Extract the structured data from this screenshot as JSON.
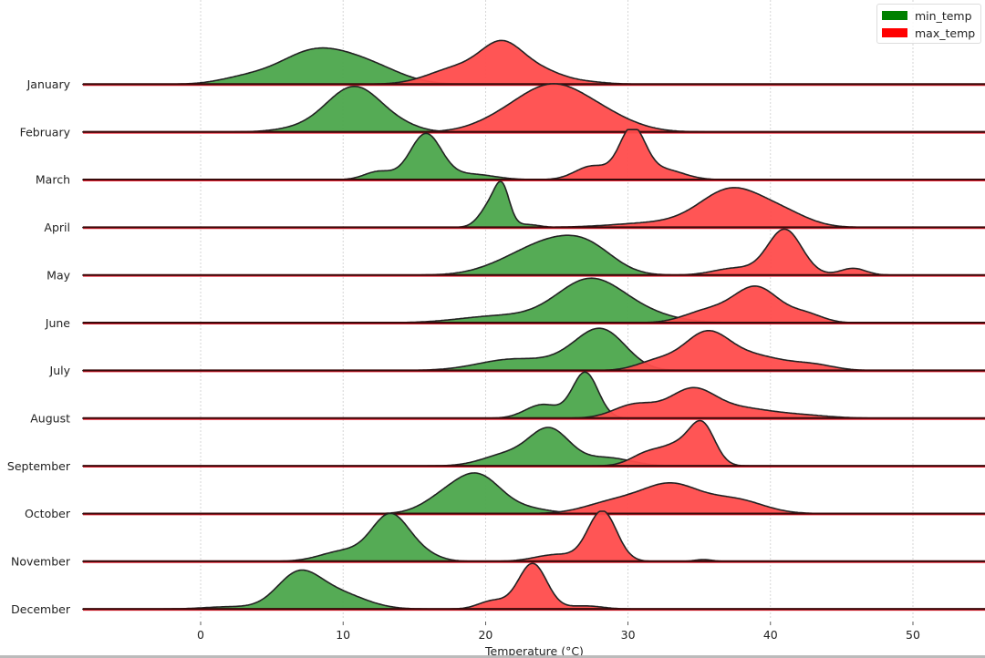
{
  "chart_data": {
    "type": "ridgeline",
    "title": "",
    "xlabel": "Temperature (°C)",
    "ylabel": "",
    "xlim": [
      -8.4,
      55.3
    ],
    "x_ticks": [
      0,
      10,
      20,
      30,
      40,
      50
    ],
    "x_tick_labels": [
      "0",
      "10",
      "20",
      "30",
      "40",
      "50"
    ],
    "grid": "vertical dashed",
    "legend_position": "upper right",
    "legend": [
      {
        "label": "min_temp",
        "color": "#008000"
      },
      {
        "label": "max_temp",
        "color": "#ff0000"
      }
    ],
    "categories": [
      "January",
      "February",
      "March",
      "April",
      "May",
      "June",
      "July",
      "August",
      "September",
      "October",
      "November",
      "December"
    ],
    "series": [
      {
        "name": "min_temp",
        "color": "#008000",
        "fill": "#4ca64c",
        "peaks": [
          8,
          11,
          15.7,
          21,
          25.5,
          27.5,
          28,
          27,
          24.5,
          19.5,
          13.3,
          7.2
        ],
        "rows": [
          [
            [
              3,
              1.8,
              0.12
            ],
            [
              8,
              2.5,
              0.72
            ],
            [
              12,
              2.2,
              0.32
            ]
          ],
          [
            [
              6.5,
              1.6,
              0.05
            ],
            [
              10.8,
              2.0,
              1.0
            ],
            [
              14.5,
              1.2,
              0.05
            ]
          ],
          [
            [
              12.5,
              1.0,
              0.18
            ],
            [
              15.8,
              1.1,
              1.0
            ],
            [
              19,
              1.6,
              0.12
            ]
          ],
          [
            [
              20.5,
              0.8,
              0.55
            ],
            [
              21.2,
              0.5,
              0.6
            ],
            [
              23,
              0.8,
              0.06
            ]
          ],
          [
            [
              22,
              2.2,
              0.25
            ],
            [
              25,
              2.2,
              0.6
            ],
            [
              27.5,
              1.8,
              0.4
            ]
          ],
          [
            [
              21,
              2.8,
              0.15
            ],
            [
              27.2,
              2.3,
              0.88
            ],
            [
              30.5,
              2.5,
              0.2
            ]
          ],
          [
            [
              22,
              2.5,
              0.25
            ],
            [
              27,
              1.8,
              0.4
            ],
            [
              28.5,
              1.6,
              0.6
            ]
          ],
          [
            [
              24,
              1.2,
              0.3
            ],
            [
              27,
              0.9,
              1.0
            ]
          ],
          [
            [
              21.5,
              1.7,
              0.25
            ],
            [
              24.5,
              1.4,
              0.78
            ],
            [
              28.5,
              1.7,
              0.18
            ]
          ],
          [
            [
              17,
              1.5,
              0.3
            ],
            [
              19.5,
              1.6,
              0.8
            ],
            [
              23,
              1.6,
              0.1
            ]
          ],
          [
            [
              10,
              1.6,
              0.22
            ],
            [
              13.3,
              1.3,
              1.0
            ],
            [
              15.5,
              1.2,
              0.15
            ]
          ],
          [
            [
              2,
              1.8,
              0.05
            ],
            [
              6.8,
              1.5,
              0.7
            ],
            [
              9.5,
              2.0,
              0.35
            ]
          ]
        ]
      },
      {
        "name": "max_temp",
        "color": "#ff0000",
        "fill": "#ff4c4c",
        "peaks": [
          21,
          24.5,
          30.3,
          37.3,
          41,
          39,
          35.3,
          34.5,
          35,
          33,
          28.2,
          23.2
        ],
        "rows": [
          [
            [
              18,
              2.0,
              0.35
            ],
            [
              21.2,
              1.5,
              0.82
            ],
            [
              24,
              1.5,
              0.25
            ],
            [
              27,
              1.5,
              0.05
            ]
          ],
          [
            [
              21,
              2.0,
              0.2
            ],
            [
              24.5,
              2.3,
              0.9
            ],
            [
              28,
              2.3,
              0.35
            ]
          ],
          [
            [
              27.5,
              1.2,
              0.3
            ],
            [
              30.3,
              0.9,
              1.1
            ],
            [
              32.5,
              1.4,
              0.22
            ]
          ],
          [
            [
              32,
              3.0,
              0.1
            ],
            [
              37.3,
              2.2,
              0.82
            ],
            [
              41,
              1.8,
              0.25
            ]
          ],
          [
            [
              37.5,
              1.5,
              0.15
            ],
            [
              41,
              1.2,
              1.0
            ],
            [
              45.8,
              0.9,
              0.15
            ]
          ],
          [
            [
              35.5,
              1.6,
              0.25
            ],
            [
              39,
              1.6,
              0.78
            ],
            [
              42.5,
              1.2,
              0.18
            ]
          ],
          [
            [
              32,
              1.4,
              0.2
            ],
            [
              35.5,
              1.6,
              0.8
            ],
            [
              39,
              2.0,
              0.3
            ],
            [
              43,
              1.5,
              0.12
            ]
          ],
          [
            [
              30.5,
              1.5,
              0.3
            ],
            [
              34.5,
              1.6,
              0.62
            ],
            [
              38,
              2.0,
              0.2
            ],
            [
              42,
              2.0,
              0.07
            ]
          ],
          [
            [
              31.5,
              1.2,
              0.3
            ],
            [
              33.5,
              1.0,
              0.35
            ],
            [
              35.2,
              0.9,
              0.9
            ]
          ],
          [
            [
              29,
              2.0,
              0.25
            ],
            [
              33,
              2.0,
              0.62
            ],
            [
              37.5,
              2.0,
              0.3
            ]
          ],
          [
            [
              25,
              1.5,
              0.15
            ],
            [
              28.2,
              1.0,
              1.1
            ],
            [
              35.3,
              0.6,
              0.04
            ]
          ],
          [
            [
              20.5,
              1.0,
              0.18
            ],
            [
              23.3,
              1.0,
              1.0
            ],
            [
              27,
              1.2,
              0.07
            ]
          ]
        ]
      }
    ]
  },
  "legend": {
    "items": [
      {
        "label": "min_temp",
        "color": "#008000"
      },
      {
        "label": "max_temp",
        "color": "#ff0000"
      }
    ]
  },
  "axes": {
    "xlabel": "Temperature (°C)"
  }
}
